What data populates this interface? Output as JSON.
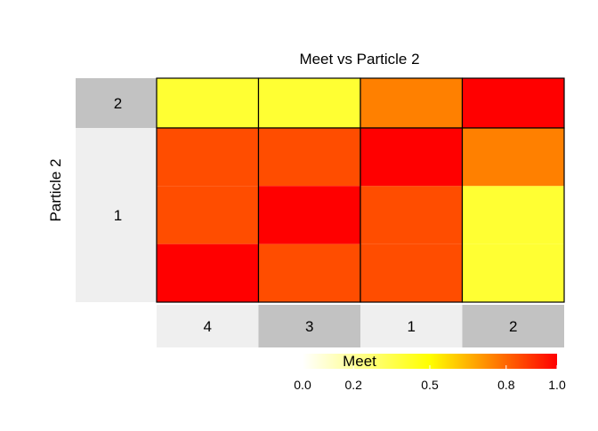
{
  "chart_data": {
    "type": "heatmap",
    "title": "Meet vs Particle 2",
    "ylabel": "Particle 2",
    "columns": [
      {
        "label": "4",
        "width_share": 1,
        "band": "light"
      },
      {
        "label": "3",
        "width_share": 1,
        "band": "dark"
      },
      {
        "label": "1",
        "width_share": 1,
        "band": "light"
      },
      {
        "label": "2",
        "width_share": 1,
        "band": "dark"
      }
    ],
    "rows": [
      {
        "label": "2",
        "height_share": 1,
        "band": "dark"
      },
      {
        "label": "1",
        "height_share": 3.5,
        "band": "light"
      }
    ],
    "cells": [
      {
        "row": 0,
        "col": 0,
        "values": [
          0.4
        ]
      },
      {
        "row": 0,
        "col": 1,
        "values": [
          0.4
        ]
      },
      {
        "row": 0,
        "col": 2,
        "values": [
          0.75
        ]
      },
      {
        "row": 0,
        "col": 3,
        "values": [
          1.0
        ]
      },
      {
        "row": 1,
        "col": 0,
        "values": [
          0.85,
          0.85,
          1.0
        ]
      },
      {
        "row": 1,
        "col": 1,
        "values": [
          0.85,
          1.0,
          0.85
        ]
      },
      {
        "row": 1,
        "col": 2,
        "values": [
          1.0,
          0.85,
          0.85
        ]
      },
      {
        "row": 1,
        "col": 3,
        "values": [
          0.75,
          0.4,
          0.4
        ]
      }
    ],
    "legend": {
      "title": "Meet",
      "placement": "bottom",
      "range": [
        0,
        1
      ],
      "ticks": [
        "0.0",
        "0.2",
        "0.5",
        "0.8",
        "1.0"
      ],
      "tick_values": [
        0.0,
        0.2,
        0.5,
        0.8,
        1.0
      ],
      "colors": [
        "#ffffff",
        "#ffff00",
        "#ff0000"
      ]
    },
    "colors": {
      "band_light": "#efefef",
      "band_dark": "#c2c2c2",
      "cell_border": "#000000"
    }
  }
}
